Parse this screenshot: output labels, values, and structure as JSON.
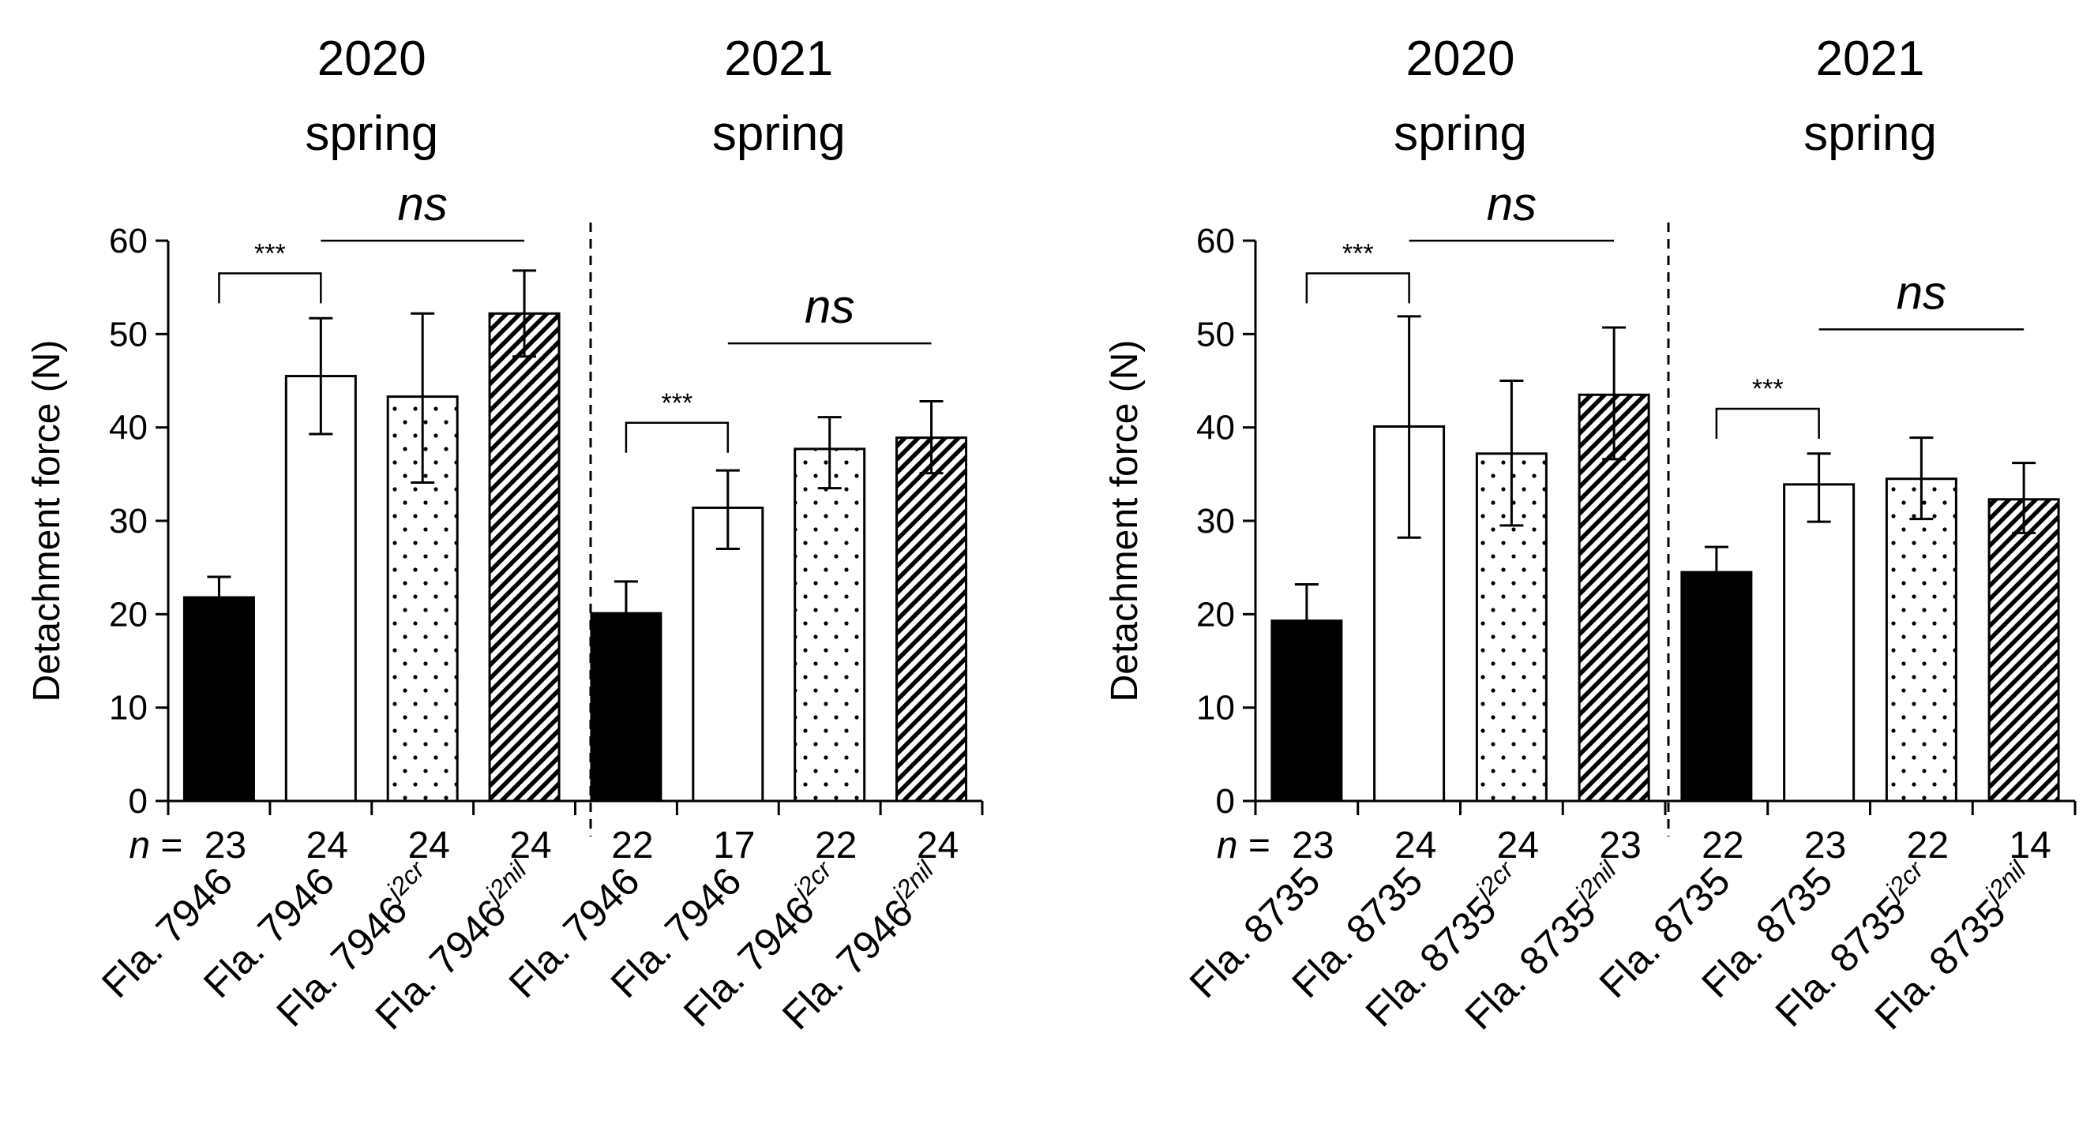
{
  "colors": {
    "ink": "#000000",
    "paper": "#ffffff"
  },
  "chart_data": [
    {
      "type": "bar",
      "title": "",
      "ylabel": "Detachment force (N)",
      "xlabel": "",
      "ylim": [
        0,
        60
      ],
      "yticks": [
        "0",
        "10",
        "20",
        "30",
        "40",
        "50",
        "60"
      ],
      "n_prefix": "n",
      "n_equals": "=",
      "groups": [
        {
          "year": "2020",
          "season": "spring"
        },
        {
          "year": "2021",
          "season": "spring"
        }
      ],
      "bars": [
        {
          "group": 0,
          "label": "Fla. 7946",
          "sup": "",
          "value": 21.8,
          "err_low": 19.6,
          "err_high": 24.0,
          "n": "23",
          "fill": "solid"
        },
        {
          "group": 0,
          "label": "Fla. 7946",
          "sup": "",
          "value": 45.5,
          "err_low": 39.3,
          "err_high": 51.7,
          "n": "24",
          "fill": "white"
        },
        {
          "group": 0,
          "label": "Fla. 7946",
          "sup": "j2cr",
          "value": 43.3,
          "err_low": 34.1,
          "err_high": 52.2,
          "n": "24",
          "fill": "dots"
        },
        {
          "group": 0,
          "label": "Fla. 7946",
          "sup": "j2nil",
          "value": 52.2,
          "err_low": 47.6,
          "err_high": 56.8,
          "n": "24",
          "fill": "hatch"
        },
        {
          "group": 1,
          "label": "Fla. 7946",
          "sup": "",
          "value": 20.1,
          "err_low": 16.8,
          "err_high": 23.5,
          "n": "22",
          "fill": "solid"
        },
        {
          "group": 1,
          "label": "Fla. 7946",
          "sup": "",
          "value": 31.4,
          "err_low": 27.0,
          "err_high": 35.4,
          "n": "17",
          "fill": "white"
        },
        {
          "group": 1,
          "label": "Fla. 7946",
          "sup": "j2cr",
          "value": 37.7,
          "err_low": 33.5,
          "err_high": 41.1,
          "n": "22",
          "fill": "dots"
        },
        {
          "group": 1,
          "label": "Fla. 7946",
          "sup": "j2nil",
          "value": 38.9,
          "err_low": 35.1,
          "err_high": 42.8,
          "n": "24",
          "fill": "hatch"
        }
      ],
      "annotations": [
        {
          "type": "bracket",
          "from": 0,
          "to": 1,
          "y": 56.5,
          "text": "***"
        },
        {
          "type": "line",
          "from": 1,
          "to": 3,
          "y": 60.0,
          "text": "ns"
        },
        {
          "type": "bracket",
          "from": 4,
          "to": 5,
          "y": 40.5,
          "text": "***"
        },
        {
          "type": "line",
          "from": 5,
          "to": 7,
          "y": 49.0,
          "text": "ns"
        }
      ]
    },
    {
      "type": "bar",
      "title": "",
      "ylabel": "Detachment force (N)",
      "xlabel": "",
      "ylim": [
        0,
        60
      ],
      "yticks": [
        "0",
        "10",
        "20",
        "30",
        "40",
        "50",
        "60"
      ],
      "n_prefix": "n",
      "n_equals": "=",
      "groups": [
        {
          "year": "2020",
          "season": "spring"
        },
        {
          "year": "2021",
          "season": "spring"
        }
      ],
      "bars": [
        {
          "group": 0,
          "label": "Fla. 8735",
          "sup": "",
          "value": 19.3,
          "err_low": 15.5,
          "err_high": 23.2,
          "n": "23",
          "fill": "solid"
        },
        {
          "group": 0,
          "label": "Fla. 8735",
          "sup": "",
          "value": 40.1,
          "err_low": 28.2,
          "err_high": 51.9,
          "n": "24",
          "fill": "white"
        },
        {
          "group": 0,
          "label": "Fla. 8735",
          "sup": "j2cr",
          "value": 37.2,
          "err_low": 29.5,
          "err_high": 45.0,
          "n": "24",
          "fill": "dots"
        },
        {
          "group": 0,
          "label": "Fla. 8735",
          "sup": "j2nil",
          "value": 43.5,
          "err_low": 36.6,
          "err_high": 50.7,
          "n": "23",
          "fill": "hatch"
        },
        {
          "group": 1,
          "label": "Fla. 8735",
          "sup": "",
          "value": 24.5,
          "err_low": 21.7,
          "err_high": 27.2,
          "n": "22",
          "fill": "solid"
        },
        {
          "group": 1,
          "label": "Fla. 8735",
          "sup": "",
          "value": 33.9,
          "err_low": 29.9,
          "err_high": 37.2,
          "n": "23",
          "fill": "white"
        },
        {
          "group": 1,
          "label": "Fla. 8735",
          "sup": "j2cr",
          "value": 34.5,
          "err_low": 30.2,
          "err_high": 38.9,
          "n": "22",
          "fill": "dots"
        },
        {
          "group": 1,
          "label": "Fla. 8735",
          "sup": "j2nil",
          "value": 32.3,
          "err_low": 28.7,
          "err_high": 36.2,
          "n": "14",
          "fill": "hatch"
        }
      ],
      "annotations": [
        {
          "type": "bracket",
          "from": 0,
          "to": 1,
          "y": 56.5,
          "text": "***"
        },
        {
          "type": "line",
          "from": 1,
          "to": 3,
          "y": 60.0,
          "text": "ns"
        },
        {
          "type": "bracket",
          "from": 4,
          "to": 5,
          "y": 42.0,
          "text": "***"
        },
        {
          "type": "line",
          "from": 5,
          "to": 7,
          "y": 50.5,
          "text": "ns"
        }
      ]
    }
  ]
}
